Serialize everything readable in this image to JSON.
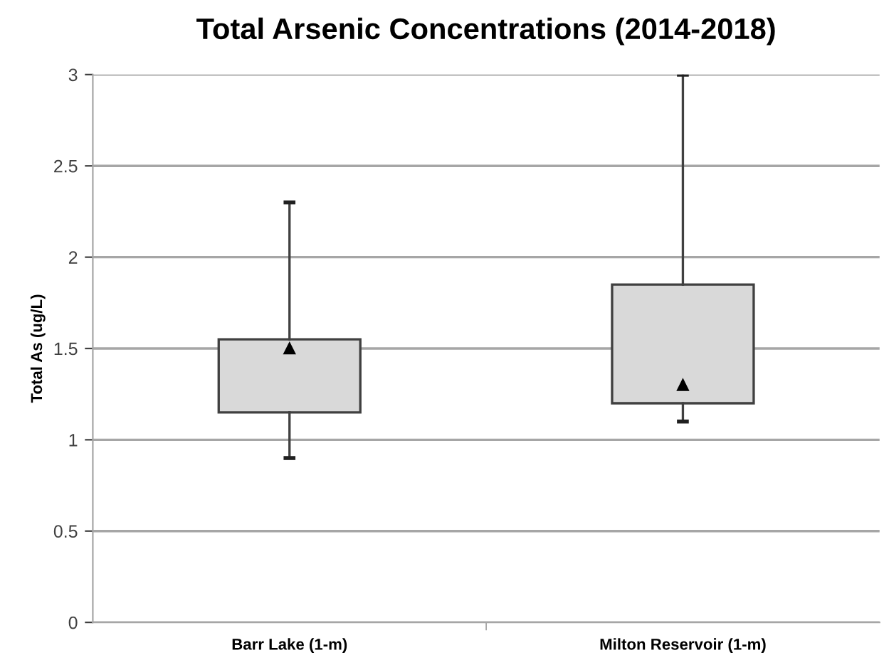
{
  "chart_data": {
    "type": "box",
    "title": "Total Arsenic Concentrations (2014-2018)",
    "ylabel": "Total As (ug/L)",
    "categories": [
      "Barr Lake (1-m)",
      "Milton Reservoir (1-m)"
    ],
    "boxes": [
      {
        "low": 0.9,
        "q1": 1.15,
        "median": 1.5,
        "q3": 1.55,
        "high": 2.3
      },
      {
        "low": 1.1,
        "q1": 1.2,
        "median": 1.3,
        "q3": 1.85,
        "high": 3.0
      }
    ],
    "color": "#d9d9d9",
    "marker": "triangle",
    "ylim": [
      0,
      3
    ],
    "yticks": [
      0,
      0.5,
      1,
      1.5,
      2,
      2.5,
      3
    ],
    "grid": "y"
  }
}
